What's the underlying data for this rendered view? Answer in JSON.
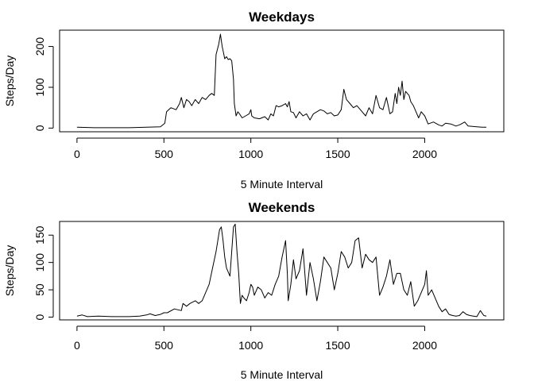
{
  "chart_data": [
    {
      "type": "line",
      "title": "Weekdays",
      "xlabel": "5 Minute Interval",
      "ylabel": "Steps/Day",
      "xlim": [
        -100,
        2455
      ],
      "ylim": [
        -9,
        240
      ],
      "xticks": [
        0,
        500,
        1000,
        1500,
        2000
      ],
      "yticks": [
        0,
        100,
        200
      ],
      "series": [
        {
          "x": [
            0,
            100,
            200,
            300,
            400,
            480,
            505,
            515,
            540,
            570,
            590,
            600,
            615,
            630,
            645,
            660,
            680,
            700,
            720,
            740,
            760,
            775,
            790,
            800,
            815,
            825,
            835,
            840,
            850,
            860,
            870,
            880,
            890,
            900,
            905,
            915,
            925,
            935,
            950,
            970,
            990,
            1000,
            1005,
            1020,
            1050,
            1080,
            1100,
            1115,
            1130,
            1145,
            1160,
            1180,
            1200,
            1210,
            1220,
            1230,
            1245,
            1260,
            1280,
            1300,
            1320,
            1340,
            1360,
            1380,
            1400,
            1420,
            1440,
            1460,
            1480,
            1500,
            1520,
            1535,
            1550,
            1570,
            1590,
            1610,
            1640,
            1660,
            1680,
            1700,
            1720,
            1740,
            1760,
            1780,
            1800,
            1815,
            1830,
            1840,
            1850,
            1860,
            1870,
            1880,
            1890,
            1900,
            1910,
            1920,
            1935,
            1950,
            1965,
            1980,
            2000,
            2020,
            2050,
            2080,
            2100,
            2120,
            2150,
            2180,
            2200,
            2210,
            2230,
            2250,
            2300,
            2330,
            2355
          ],
          "values": [
            2,
            1,
            1,
            1,
            2,
            3,
            12,
            40,
            50,
            45,
            60,
            75,
            50,
            70,
            65,
            55,
            70,
            60,
            75,
            70,
            80,
            85,
            80,
            180,
            205,
            230,
            200,
            190,
            170,
            175,
            168,
            170,
            165,
            120,
            60,
            30,
            40,
            35,
            25,
            30,
            35,
            45,
            30,
            25,
            23,
            28,
            20,
            35,
            30,
            55,
            52,
            55,
            60,
            52,
            65,
            40,
            38,
            25,
            40,
            30,
            35,
            20,
            35,
            40,
            45,
            42,
            35,
            38,
            30,
            32,
            45,
            95,
            70,
            60,
            50,
            55,
            40,
            30,
            50,
            35,
            80,
            50,
            45,
            75,
            35,
            40,
            85,
            60,
            100,
            80,
            115,
            70,
            90,
            85,
            80,
            65,
            55,
            40,
            25,
            40,
            30,
            10,
            15,
            8,
            5,
            12,
            10,
            5,
            8,
            10,
            15,
            5,
            3,
            2,
            2
          ]
        }
      ]
    },
    {
      "type": "line",
      "title": "Weekends",
      "xlabel": "5 Minute Interval",
      "ylabel": "Steps/Day",
      "xlim": [
        -100,
        2455
      ],
      "ylim": [
        -5,
        175
      ],
      "xticks": [
        0,
        500,
        1000,
        1500,
        2000
      ],
      "yticks": [
        0,
        50,
        100,
        150
      ],
      "series": [
        {
          "x": [
            0,
            30,
            60,
            120,
            200,
            300,
            360,
            400,
            420,
            450,
            480,
            500,
            520,
            560,
            600,
            610,
            630,
            650,
            680,
            700,
            720,
            740,
            760,
            780,
            800,
            820,
            830,
            840,
            850,
            860,
            880,
            900,
            910,
            920,
            930,
            940,
            950,
            960,
            975,
            990,
            1000,
            1010,
            1020,
            1040,
            1060,
            1080,
            1100,
            1120,
            1140,
            1160,
            1180,
            1200,
            1210,
            1215,
            1230,
            1245,
            1260,
            1280,
            1300,
            1320,
            1340,
            1360,
            1380,
            1400,
            1420,
            1440,
            1460,
            1480,
            1500,
            1520,
            1540,
            1560,
            1580,
            1600,
            1620,
            1640,
            1660,
            1680,
            1700,
            1720,
            1740,
            1760,
            1780,
            1800,
            1820,
            1840,
            1860,
            1880,
            1900,
            1920,
            1940,
            1960,
            1980,
            2000,
            2010,
            2020,
            2040,
            2060,
            2080,
            2100,
            2120,
            2140,
            2160,
            2180,
            2200,
            2220,
            2240,
            2260,
            2280,
            2300,
            2320,
            2340,
            2355
          ],
          "values": [
            2,
            4,
            1,
            2,
            1,
            1,
            2,
            4,
            6,
            3,
            5,
            8,
            8,
            15,
            12,
            25,
            20,
            25,
            30,
            25,
            30,
            45,
            60,
            90,
            120,
            160,
            165,
            140,
            110,
            90,
            75,
            165,
            170,
            120,
            80,
            25,
            40,
            35,
            30,
            45,
            60,
            55,
            40,
            55,
            50,
            35,
            45,
            40,
            60,
            75,
            110,
            140,
            80,
            30,
            60,
            105,
            70,
            85,
            125,
            40,
            100,
            70,
            30,
            65,
            110,
            100,
            90,
            50,
            80,
            120,
            110,
            90,
            100,
            140,
            145,
            90,
            115,
            105,
            100,
            110,
            40,
            55,
            75,
            105,
            60,
            80,
            80,
            50,
            40,
            65,
            20,
            30,
            45,
            60,
            85,
            40,
            50,
            35,
            20,
            10,
            15,
            5,
            3,
            2,
            3,
            10,
            5,
            3,
            2,
            1,
            12,
            3,
            2
          ]
        }
      ]
    }
  ]
}
